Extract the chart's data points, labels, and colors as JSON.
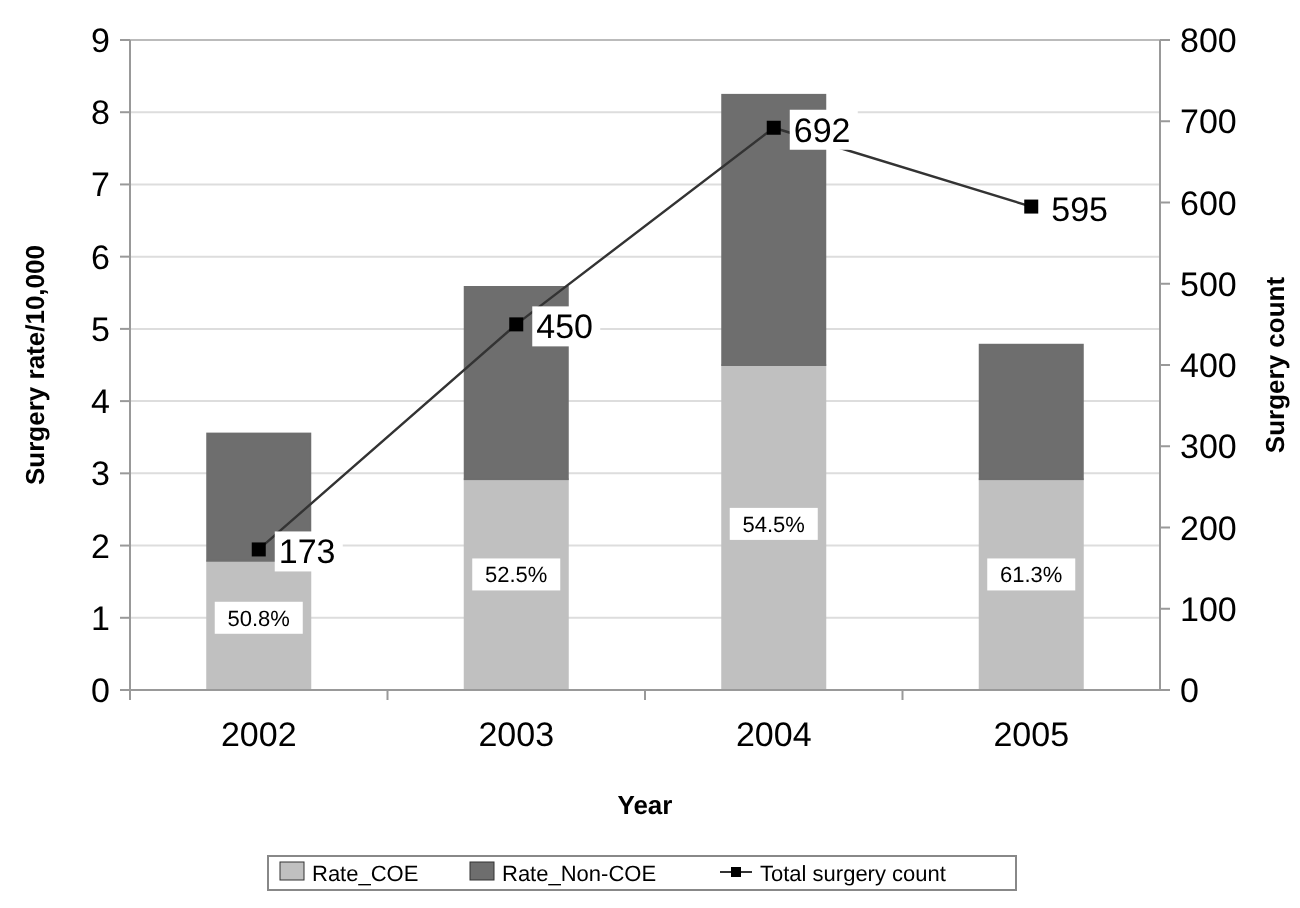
{
  "chart_data": {
    "type": "bar",
    "stacked": true,
    "xlabel": "Year",
    "ylabel": "Surgery  rate/10,000",
    "y2label": "Surgery count",
    "categories": [
      "2002",
      "2003",
      "2004",
      "2005"
    ],
    "series": [
      {
        "name": "Rate_COE",
        "color": "#c0c0c0",
        "values": [
          1.79,
          2.92,
          4.5,
          2.92
        ]
      },
      {
        "name": "Rate_Non-COE",
        "color": "#6e6e6e",
        "values": [
          1.76,
          2.66,
          3.74,
          1.86
        ]
      },
      {
        "name": "Total surgery count",
        "type": "line",
        "axis": "y2",
        "color": "#333333",
        "marker": "square",
        "values": [
          173,
          450,
          692,
          595
        ],
        "value_labels": [
          "173",
          "450",
          "692",
          "595"
        ]
      }
    ],
    "ylim": [
      0,
      9
    ],
    "yticks": [
      0,
      1,
      2,
      3,
      4,
      5,
      6,
      7,
      8,
      9
    ],
    "y2lim": [
      0,
      800
    ],
    "y2ticks": [
      0,
      100,
      200,
      300,
      400,
      500,
      600,
      700,
      800
    ],
    "grid": "y",
    "legend": "bottom",
    "annotations": [
      {
        "text": "50.8%",
        "x": "2002",
        "y": 1
      },
      {
        "text": "52.5%",
        "x": "2003",
        "y": 1.6
      },
      {
        "text": "54.5%",
        "x": "2004",
        "y": 2.3
      },
      {
        "text": "61.3%",
        "x": "2005",
        "y": 1.6
      }
    ]
  }
}
